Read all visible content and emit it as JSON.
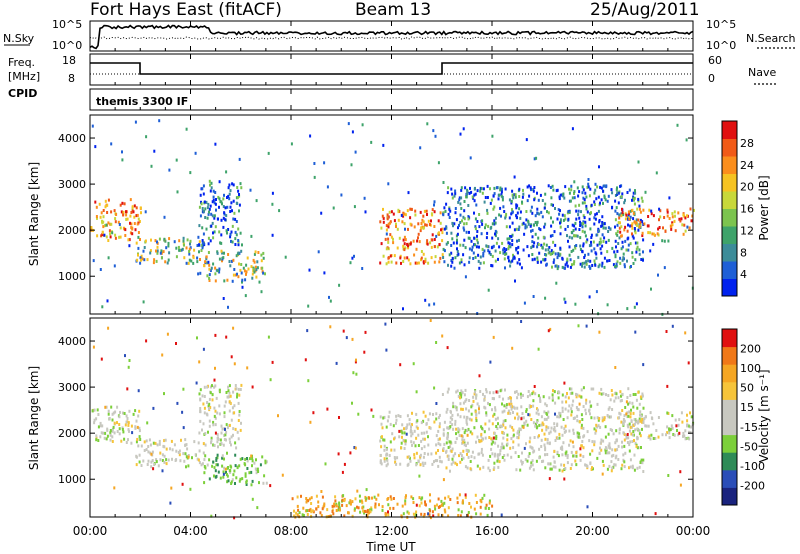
{
  "header": {
    "station": "Fort Hays East (fitACF)",
    "beam": "Beam 13",
    "date": "25/Aug/2011"
  },
  "noise_panel": {
    "left_label": "N.Sky",
    "right_label": "N.Search",
    "left_ticks": [
      "10^5",
      "10^0"
    ],
    "right_ticks": [
      "10^5",
      "10^0"
    ]
  },
  "freq_panel": {
    "left_label_1": "Freq.",
    "left_label_2": "[MHz]",
    "right_label": "Nave",
    "left_ticks": [
      "18",
      "8"
    ],
    "right_ticks": [
      "60",
      "0"
    ]
  },
  "cpid_panel": {
    "label": "CPID",
    "text": "themis 3300 IF"
  },
  "x_axis": {
    "label": "Time UT",
    "ticks": [
      "00:00",
      "04:00",
      "08:00",
      "12:00",
      "16:00",
      "20:00",
      "00:00"
    ]
  },
  "chart_data": [
    {
      "type": "heatmap",
      "name": "power",
      "ylabel": "Slant Range [km]",
      "ylim": [
        180,
        4500
      ],
      "yticks": [
        1000,
        2000,
        3000,
        4000
      ],
      "xlim_hours": [
        0,
        24
      ],
      "colorbar": {
        "label": "Power [dB]",
        "ticks": [
          "4",
          "8",
          "12",
          "16",
          "20",
          "24",
          "28"
        ],
        "colors": [
          "#0022ee",
          "#1e5fd6",
          "#3c8c99",
          "#3ea36a",
          "#7cc44f",
          "#c8d83a",
          "#f6c322",
          "#fb8e1c",
          "#f15a17",
          "#e01010"
        ]
      },
      "echo_regions": [
        {
          "t": [
            0.0,
            2.0
          ],
          "r": [
            1800,
            2700
          ],
          "level": "high"
        },
        {
          "t": [
            1.8,
            4.5
          ],
          "r": [
            1300,
            1900
          ],
          "level": "medium"
        },
        {
          "t": [
            4.3,
            6.0
          ],
          "r": [
            1700,
            3100
          ],
          "level": "low"
        },
        {
          "t": [
            4.5,
            7.0
          ],
          "r": [
            900,
            1600
          ],
          "level": "medium"
        },
        {
          "t": [
            11.5,
            14.0
          ],
          "r": [
            1300,
            2500
          ],
          "level": "high"
        },
        {
          "t": [
            14.0,
            22.0
          ],
          "r": [
            1200,
            3000
          ],
          "level": "low"
        },
        {
          "t": [
            21.0,
            24.0
          ],
          "r": [
            1900,
            2500
          ],
          "level": "high"
        }
      ]
    },
    {
      "type": "heatmap",
      "name": "velocity",
      "ylabel": "Slant Range [km]",
      "ylim": [
        180,
        4500
      ],
      "yticks": [
        1000,
        2000,
        3000,
        4000
      ],
      "xlim_hours": [
        0,
        24
      ],
      "colorbar": {
        "label": "Velocity [m s⁻¹]",
        "ticks": [
          "200",
          "100",
          "50",
          "15",
          "-15",
          "-50",
          "-100",
          "-200"
        ],
        "colors": [
          "#1a237e",
          "#2a4db8",
          "#2e8b57",
          "#7ccf3a",
          "#c8c8c0",
          "#c8c8c0",
          "#f6c43a",
          "#f5a623",
          "#f07818",
          "#e01010"
        ]
      },
      "echo_regions": [
        {
          "t": [
            0.0,
            2.0
          ],
          "r": [
            1800,
            2600
          ],
          "level": "ground"
        },
        {
          "t": [
            1.8,
            4.5
          ],
          "r": [
            1300,
            1900
          ],
          "level": "ground"
        },
        {
          "t": [
            4.3,
            6.0
          ],
          "r": [
            1700,
            3100
          ],
          "level": "ground"
        },
        {
          "t": [
            4.5,
            7.0
          ],
          "r": [
            900,
            1600
          ],
          "level": "green"
        },
        {
          "t": [
            11.5,
            14.0
          ],
          "r": [
            1300,
            2500
          ],
          "level": "ground"
        },
        {
          "t": [
            14.0,
            22.0
          ],
          "r": [
            1200,
            3000
          ],
          "level": "ground"
        },
        {
          "t": [
            21.0,
            24.0
          ],
          "r": [
            1900,
            2500
          ],
          "level": "ground"
        },
        {
          "t": [
            8.0,
            16.0
          ],
          "r": [
            200,
            700
          ],
          "level": "orange"
        }
      ]
    }
  ]
}
